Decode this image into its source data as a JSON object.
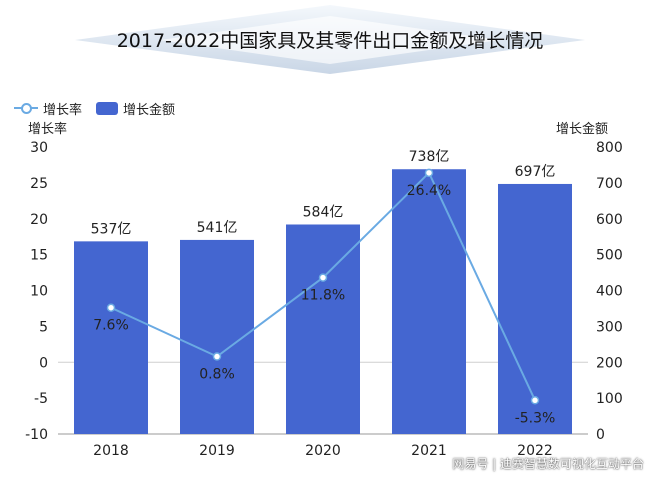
{
  "chart_data": {
    "type": "bar",
    "title": "2017-2022中国家具及其零件出口金额及增长情况",
    "categories": [
      "2018",
      "2019",
      "2020",
      "2021",
      "2022"
    ],
    "series": [
      {
        "name": "增长金额",
        "type": "bar",
        "axis": "right",
        "values": [
          537,
          541,
          584,
          738,
          697
        ],
        "labels": [
          "537亿",
          "541亿",
          "584亿",
          "738亿",
          "697亿"
        ],
        "color": "#4466d0"
      },
      {
        "name": "增长率",
        "type": "line",
        "axis": "left",
        "values": [
          7.6,
          0.8,
          11.8,
          26.4,
          -5.3
        ],
        "labels": [
          "7.6%",
          "0.8%",
          "11.8%",
          "26.4%",
          "-5.3%"
        ],
        "color": "#6aaae3"
      }
    ],
    "y_left": {
      "label": "增长率",
      "range": [
        -10,
        30
      ],
      "ticks": [
        "30",
        "25",
        "20",
        "15",
        "10",
        "5",
        "0",
        "-5",
        "-10"
      ]
    },
    "y_right": {
      "label": "增长金额",
      "range": [
        0,
        800
      ],
      "ticks": [
        "800",
        "700",
        "600",
        "500",
        "400",
        "300",
        "200",
        "100",
        "0"
      ]
    },
    "grid": false,
    "legend": "top-left"
  },
  "watermark": "网易号 | 迪赛智慧数可视化互动平台"
}
